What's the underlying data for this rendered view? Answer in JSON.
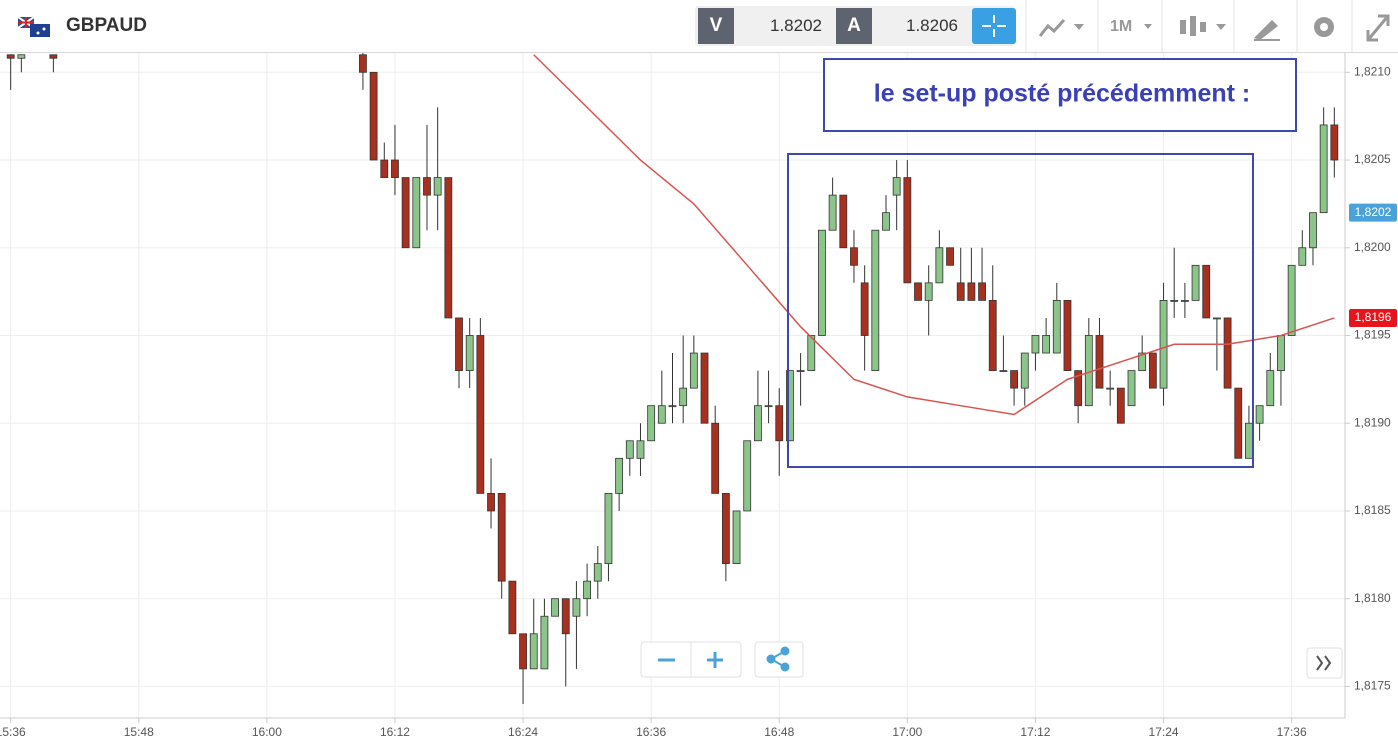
{
  "header": {
    "symbol": "GBPAUD",
    "sell_label": "V",
    "sell": "1.8202",
    "buy_label": "A",
    "buy": "1.8206",
    "timeframe": "1M"
  },
  "chart_data": {
    "type": "candlestick",
    "annotation": "le set-up posté précédemment :",
    "x": [
      "15:36",
      "15:37",
      "15:40",
      "16:09",
      "16:10",
      "16:11",
      "16:12",
      "16:13",
      "16:14",
      "16:15",
      "16:16",
      "16:17",
      "16:18",
      "16:19",
      "16:20",
      "16:21",
      "16:22",
      "16:23",
      "16:24",
      "16:25",
      "16:26",
      "16:27",
      "16:28",
      "16:29",
      "16:30",
      "16:31",
      "16:32",
      "16:33",
      "16:34",
      "16:35",
      "16:36",
      "16:37",
      "16:38",
      "16:39",
      "16:40",
      "16:41",
      "16:42",
      "16:43",
      "16:44",
      "16:45",
      "16:46",
      "16:47",
      "16:48",
      "16:49",
      "16:50",
      "16:51",
      "16:52",
      "16:53",
      "16:54",
      "16:55",
      "16:56",
      "16:57",
      "16:58",
      "16:59",
      "17:00",
      "17:01",
      "17:02",
      "17:03",
      "17:04",
      "17:05",
      "17:06",
      "17:07",
      "17:08",
      "17:09",
      "17:10",
      "17:11",
      "17:12",
      "17:13",
      "17:14",
      "17:15",
      "17:16",
      "17:17",
      "17:18",
      "17:19",
      "17:20",
      "17:21",
      "17:22",
      "17:23",
      "17:24",
      "17:25",
      "17:26",
      "17:27",
      "17:28",
      "17:29",
      "17:30",
      "17:31",
      "17:32",
      "17:33",
      "17:34",
      "17:35",
      "17:36",
      "17:37",
      "17:38",
      "17:39",
      "17:40"
    ],
    "open": [
      1.8211,
      1.82108,
      1.8211,
      1.8211,
      1.821,
      1.8205,
      1.8205,
      1.8204,
      1.82,
      1.8204,
      1.8203,
      1.8204,
      1.8196,
      1.8193,
      1.8195,
      1.8186,
      1.8186,
      1.8181,
      1.8178,
      1.8176,
      1.8176,
      1.8179,
      1.818,
      1.8179,
      1.818,
      1.8181,
      1.8182,
      1.8186,
      1.8188,
      1.8188,
      1.8189,
      1.819,
      1.8191,
      1.8191,
      1.8192,
      1.8194,
      1.819,
      1.8186,
      1.8182,
      1.8185,
      1.8189,
      1.8191,
      1.8191,
      1.8189,
      1.8193,
      1.8193,
      1.8195,
      1.8201,
      1.8203,
      1.82,
      1.8198,
      1.8193,
      1.8201,
      1.8203,
      1.8204,
      1.8198,
      1.8197,
      1.8198,
      1.82,
      1.8198,
      1.8198,
      1.8198,
      1.8197,
      1.8193,
      1.8193,
      1.8192,
      1.8194,
      1.8194,
      1.8194,
      1.8197,
      1.8193,
      1.8191,
      1.8195,
      1.8192,
      1.8192,
      1.8191,
      1.8193,
      1.8194,
      1.8192,
      1.8197,
      1.8197,
      1.8197,
      1.8199,
      1.8196,
      1.8196,
      1.8192,
      1.8188,
      1.819,
      1.8191,
      1.8193,
      1.8195,
      1.8199,
      1.82,
      1.8202,
      1.8207
    ],
    "high": [
      1.8211,
      1.8211,
      1.8211,
      1.8212,
      1.821,
      1.8206,
      1.8207,
      1.8204,
      1.8204,
      1.8207,
      1.8208,
      1.8204,
      1.8196,
      1.8196,
      1.8196,
      1.8188,
      1.8186,
      1.8181,
      1.8178,
      1.818,
      1.818,
      1.818,
      1.818,
      1.8181,
      1.8182,
      1.8183,
      1.8186,
      1.8188,
      1.8189,
      1.819,
      1.8191,
      1.8193,
      1.8194,
      1.8195,
      1.8195,
      1.8194,
      1.8191,
      1.8186,
      1.8185,
      1.8189,
      1.8193,
      1.8193,
      1.8192,
      1.8193,
      1.8194,
      1.8195,
      1.8201,
      1.8204,
      1.8203,
      1.8201,
      1.8199,
      1.8201,
      1.8203,
      1.8205,
      1.8205,
      1.8198,
      1.8199,
      1.8201,
      1.82,
      1.82,
      1.82,
      1.82,
      1.8199,
      1.8195,
      1.8193,
      1.8194,
      1.8195,
      1.8196,
      1.8198,
      1.8197,
      1.8193,
      1.8196,
      1.8196,
      1.8193,
      1.8192,
      1.8193,
      1.8195,
      1.8194,
      1.8198,
      1.82,
      1.8198,
      1.8199,
      1.8199,
      1.8196,
      1.8196,
      1.8192,
      1.8191,
      1.8191,
      1.8194,
      1.8195,
      1.8199,
      1.8201,
      1.8202,
      1.8208,
      1.8208
    ],
    "low": [
      1.8209,
      1.821,
      1.821,
      1.8209,
      1.8205,
      1.8204,
      1.8203,
      1.82,
      1.82,
      1.8201,
      1.8201,
      1.8196,
      1.8192,
      1.8192,
      1.8186,
      1.8184,
      1.818,
      1.8178,
      1.8174,
      1.8176,
      1.8176,
      1.8179,
      1.8175,
      1.8176,
      1.8179,
      1.818,
      1.8181,
      1.8185,
      1.8187,
      1.8187,
      1.8189,
      1.819,
      1.819,
      1.819,
      1.8192,
      1.819,
      1.8186,
      1.8181,
      1.8182,
      1.8185,
      1.8189,
      1.819,
      1.8187,
      1.8189,
      1.8191,
      1.8193,
      1.8195,
      1.8201,
      1.82,
      1.8198,
      1.8193,
      1.8193,
      1.8201,
      1.8201,
      1.8198,
      1.8197,
      1.8195,
      1.8198,
      1.8199,
      1.8197,
      1.8197,
      1.8197,
      1.8193,
      1.8193,
      1.8191,
      1.8191,
      1.8193,
      1.8194,
      1.8194,
      1.8193,
      1.819,
      1.8191,
      1.8192,
      1.8191,
      1.819,
      1.8191,
      1.8193,
      1.8192,
      1.8191,
      1.8196,
      1.8196,
      1.8197,
      1.8196,
      1.8193,
      1.8192,
      1.8188,
      1.8188,
      1.8189,
      1.8191,
      1.8191,
      1.8195,
      1.8199,
      1.8199,
      1.8202,
      1.8204
    ],
    "close": [
      1.82108,
      1.8211,
      1.82108,
      1.821,
      1.8205,
      1.8204,
      1.8204,
      1.82,
      1.8204,
      1.8203,
      1.8204,
      1.8196,
      1.8193,
      1.8195,
      1.8186,
      1.8185,
      1.8181,
      1.8178,
      1.8176,
      1.8178,
      1.8179,
      1.818,
      1.8178,
      1.818,
      1.8181,
      1.8182,
      1.8186,
      1.8188,
      1.8189,
      1.8189,
      1.8191,
      1.8191,
      1.8191,
      1.8192,
      1.8194,
      1.819,
      1.8186,
      1.8182,
      1.8185,
      1.8189,
      1.8191,
      1.8191,
      1.8189,
      1.8193,
      1.8193,
      1.8195,
      1.8201,
      1.8203,
      1.82,
      1.8199,
      1.8195,
      1.8201,
      1.8202,
      1.8204,
      1.8198,
      1.8197,
      1.8198,
      1.82,
      1.8199,
      1.8197,
      1.8197,
      1.8197,
      1.8193,
      1.8193,
      1.8192,
      1.8194,
      1.8195,
      1.8195,
      1.8197,
      1.8193,
      1.8191,
      1.8195,
      1.8192,
      1.8192,
      1.819,
      1.8193,
      1.8194,
      1.8192,
      1.8197,
      1.8197,
      1.8197,
      1.8199,
      1.8196,
      1.8196,
      1.8192,
      1.8188,
      1.819,
      1.8191,
      1.8193,
      1.8195,
      1.8199,
      1.82,
      1.8202,
      1.8207,
      1.8205
    ],
    "up_color": "#8cc58a",
    "down_color": "#a8301f",
    "ma": {
      "color": "#d9534f",
      "x": [
        "16:25",
        "16:30",
        "16:35",
        "16:40",
        "16:45",
        "16:50",
        "16:55",
        "17:00",
        "17:05",
        "17:10",
        "17:15",
        "17:20",
        "17:25",
        "17:30",
        "17:35",
        "17:40"
      ],
      "values": [
        1.8211,
        1.8208,
        1.8205,
        1.82025,
        1.8199,
        1.81955,
        1.81925,
        1.81915,
        1.8191,
        1.81905,
        1.81925,
        1.81935,
        1.81945,
        1.81945,
        1.8195,
        1.8196
      ]
    },
    "price_tags": [
      {
        "value": 1.8202,
        "label": "1,8202",
        "color": "#4aa3d8"
      },
      {
        "value": 1.8196,
        "label": "1,8196",
        "color": "#e8141b"
      }
    ],
    "xlim": [
      "15:35",
      "17:41"
    ],
    "xticks": [
      "15:36",
      "15:48",
      "16:00",
      "16:12",
      "16:24",
      "16:36",
      "16:48",
      "17:00",
      "17:12",
      "17:24",
      "17:36"
    ],
    "ylim": [
      1.81732,
      1.82111
    ],
    "yticks": [
      {
        "value": 1.8175,
        "label": "1,8175"
      },
      {
        "value": 1.818,
        "label": "1,8180"
      },
      {
        "value": 1.8185,
        "label": "1,8185"
      },
      {
        "value": 1.819,
        "label": "1,8190"
      },
      {
        "value": 1.8195,
        "label": "1,8195"
      },
      {
        "value": 1.82,
        "label": "1,8200"
      },
      {
        "value": 1.8205,
        "label": "1,8205"
      },
      {
        "value": 1.821,
        "label": "1,8210"
      }
    ],
    "grid": true
  }
}
